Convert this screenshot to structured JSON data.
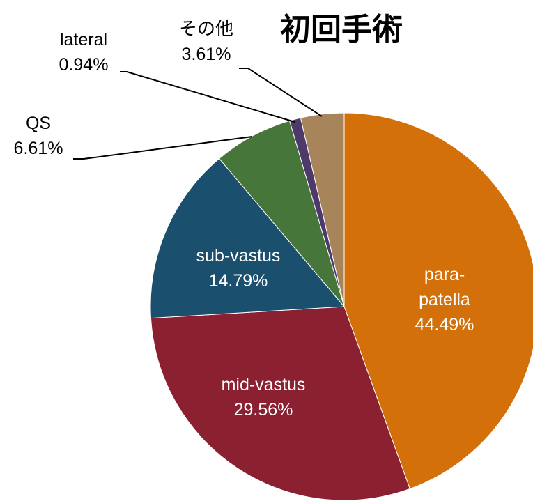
{
  "chart_data": {
    "type": "pie",
    "title": "初回手術",
    "categories": [
      "para-patella",
      "mid-vastus",
      "sub-vastus",
      "QS",
      "lateral",
      "その他"
    ],
    "values": [
      44.49,
      29.56,
      14.79,
      6.61,
      0.94,
      3.61
    ],
    "value_labels": [
      "44.49%",
      "29.56%",
      "14.79%",
      "6.61%",
      "0.94%",
      "3.61%"
    ],
    "colors": [
      "#d4700a",
      "#8b2030",
      "#1b4f6e",
      "#46763a",
      "#4d3a6a",
      "#a8845a"
    ]
  }
}
